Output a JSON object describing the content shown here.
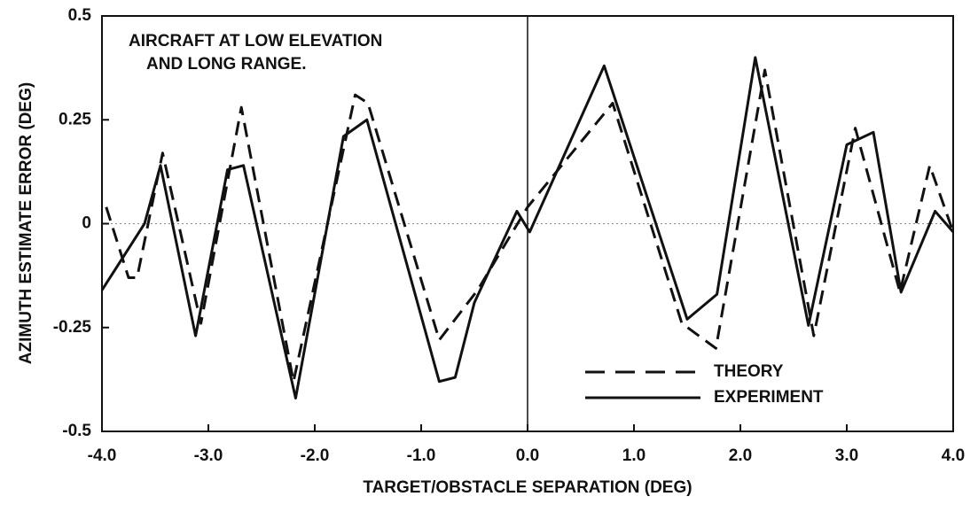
{
  "chart_data": {
    "type": "line",
    "annotation": [
      "AIRCRAFT AT LOW ELEVATION",
      "AND LONG RANGE."
    ],
    "x_label": "TARGET/OBSTACLE SEPARATION (DEG)",
    "y_label": "AZIMUTH ESTIMATE ERROR (DEG)",
    "xlim": [
      -4.0,
      4.0
    ],
    "ylim": [
      -0.5,
      0.5
    ],
    "xticks": [
      {
        "value": -4,
        "label": "-4.0"
      },
      {
        "value": -3,
        "label": "-3.0"
      },
      {
        "value": -2,
        "label": "-2.0"
      },
      {
        "value": -1,
        "label": "-1.0"
      },
      {
        "value": 0,
        "label": "0.0"
      },
      {
        "value": 1,
        "label": "1.0"
      },
      {
        "value": 2,
        "label": "2.0"
      },
      {
        "value": 3,
        "label": "3.0"
      },
      {
        "value": 4,
        "label": "4.0"
      }
    ],
    "yticks": [
      0.5,
      0.25,
      0,
      -0.25,
      -0.5
    ],
    "zero_lines": true,
    "legend": "lower right",
    "series": [
      {
        "name": "THEORY",
        "color": "#111111",
        "dashed": true,
        "x": [
          -3.96,
          -3.75,
          -3.67,
          -3.43,
          -3.07,
          -2.69,
          -2.2,
          -1.62,
          -1.5,
          -0.83,
          -0.47,
          0.0,
          0.8,
          1.45,
          1.77,
          2.23,
          2.69,
          3.08,
          3.5,
          3.78,
          4.0
        ],
        "values": [
          0.04,
          -0.13,
          -0.13,
          0.17,
          -0.24,
          0.28,
          -0.38,
          0.31,
          0.29,
          -0.28,
          -0.16,
          0.04,
          0.29,
          -0.24,
          -0.3,
          0.37,
          -0.27,
          0.23,
          -0.165,
          0.14,
          -0.02
        ]
      },
      {
        "name": "EXPERIMENT",
        "color": "#111111",
        "dashed": false,
        "x": [
          -4.0,
          -3.6,
          -3.45,
          -3.12,
          -2.82,
          -2.67,
          -2.18,
          -1.73,
          -1.51,
          -0.83,
          -0.68,
          -0.5,
          -0.1,
          0.02,
          0.72,
          1.5,
          1.78,
          2.14,
          2.64,
          3.0,
          3.25,
          3.51,
          3.83,
          4.0
        ],
        "values": [
          -0.16,
          0.0,
          0.14,
          -0.27,
          0.13,
          0.14,
          -0.42,
          0.21,
          0.25,
          -0.38,
          -0.37,
          -0.19,
          0.03,
          -0.02,
          0.38,
          -0.23,
          -0.17,
          0.4,
          -0.245,
          0.19,
          0.22,
          -0.165,
          0.03,
          -0.02
        ]
      }
    ]
  }
}
